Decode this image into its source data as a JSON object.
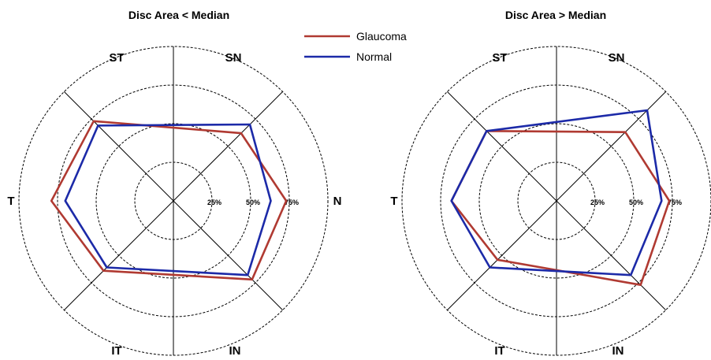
{
  "legend": [
    {
      "name": "Glaucoma",
      "color": "#b03a32"
    },
    {
      "name": "Normal",
      "color": "#1c2aa8"
    }
  ],
  "chart_data": [
    {
      "type": "radar",
      "title": "Disc Area < Median",
      "axes": [
        "N",
        "SN",
        "ST",
        "T",
        "IT",
        "IN"
      ],
      "ring_levels": [
        25,
        50,
        75,
        100
      ],
      "ring_labels": [
        "25%",
        "50%",
        "75%"
      ],
      "series": [
        {
          "name": "Glaucoma",
          "color": "#b03a32",
          "values": [
            73,
            62,
            73,
            79,
            64,
            72
          ]
        },
        {
          "name": "Normal",
          "color": "#1c2aa8",
          "values": [
            63,
            70,
            69,
            70,
            61,
            68
          ]
        }
      ]
    },
    {
      "type": "radar",
      "title": "Disc Area > Median",
      "axes": [
        "N",
        "SN",
        "ST",
        "T",
        "IT",
        "IN"
      ],
      "ring_levels": [
        25,
        50,
        75,
        100
      ],
      "ring_labels": [
        "25%",
        "50%",
        "75%"
      ],
      "series": [
        {
          "name": "Glaucoma",
          "color": "#b03a32",
          "values": [
            73,
            63,
            64,
            68,
            54,
            77
          ]
        },
        {
          "name": "Normal",
          "color": "#1c2aa8",
          "values": [
            68,
            83,
            64,
            68,
            61,
            68
          ]
        }
      ]
    }
  ]
}
